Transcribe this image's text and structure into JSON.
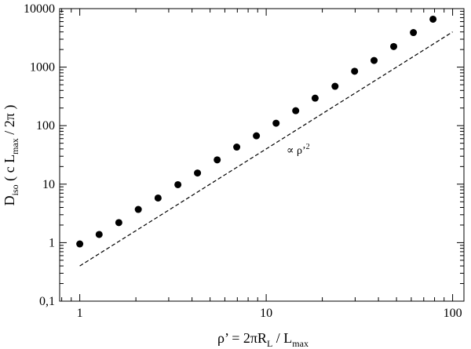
{
  "chart_data": {
    "type": "scatter",
    "title": "",
    "xscale": "log",
    "yscale": "log",
    "xlim": [
      0.78,
      115
    ],
    "ylim": [
      0.1,
      10000
    ],
    "xticks": [
      1,
      10,
      100
    ],
    "xtick_labels": [
      "1",
      "10",
      "100"
    ],
    "yticks": [
      0.1,
      1,
      10,
      100,
      1000,
      10000
    ],
    "ytick_labels": [
      "0,1",
      "1",
      "10",
      "100",
      "1000",
      "10000"
    ],
    "xlabel": {
      "main": "ρ’ = 2πR",
      "sub1": "L",
      "mid": " / L",
      "sub2": "max"
    },
    "ylabel": {
      "main": "D",
      "sub1": "iso",
      "mid": "  ( c L",
      "sub2": "max",
      "tail": " / 2π )"
    },
    "series": [
      {
        "marker": "filled-circle",
        "color": "#000000",
        "x": [
          1.0,
          1.27,
          1.62,
          2.06,
          2.63,
          3.36,
          4.28,
          5.46,
          6.95,
          8.86,
          11.3,
          14.4,
          18.3,
          23.4,
          29.8,
          37.9,
          48.3,
          61.6,
          78.5
        ],
        "y": [
          0.95,
          1.38,
          2.2,
          3.7,
          5.8,
          9.8,
          15.5,
          26,
          43,
          67,
          110,
          180,
          295,
          470,
          850,
          1300,
          2250,
          3900,
          6600
        ]
      }
    ],
    "reference_line": {
      "style": "dashed",
      "color": "#000000",
      "x": [
        1,
        100
      ],
      "y": [
        0.4,
        4000
      ],
      "label": "∝ ρ’",
      "label_superscript": "2"
    }
  }
}
